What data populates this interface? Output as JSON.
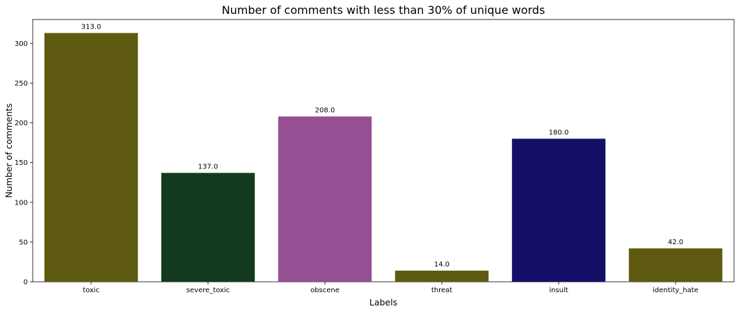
{
  "chart_data": {
    "type": "bar",
    "title": "Number of comments with less than 30% of unique words",
    "xlabel": "Labels",
    "ylabel": "Number of comments",
    "categories": [
      "toxic",
      "severe_toxic",
      "obscene",
      "threat",
      "insult",
      "identity_hate"
    ],
    "values": [
      313.0,
      137.0,
      208.0,
      14.0,
      180.0,
      42.0
    ],
    "data_labels": [
      "313.0",
      "137.0",
      "208.0",
      "14.0",
      "180.0",
      "42.0"
    ],
    "colors": [
      "#5f5a11",
      "#133a1f",
      "#964f92",
      "#5f5a11",
      "#140f66",
      "#5f5a11"
    ],
    "ylim": [
      0,
      330
    ],
    "yticks": [
      0,
      50,
      100,
      150,
      200,
      250,
      300
    ],
    "grid": false,
    "legend": "none"
  }
}
